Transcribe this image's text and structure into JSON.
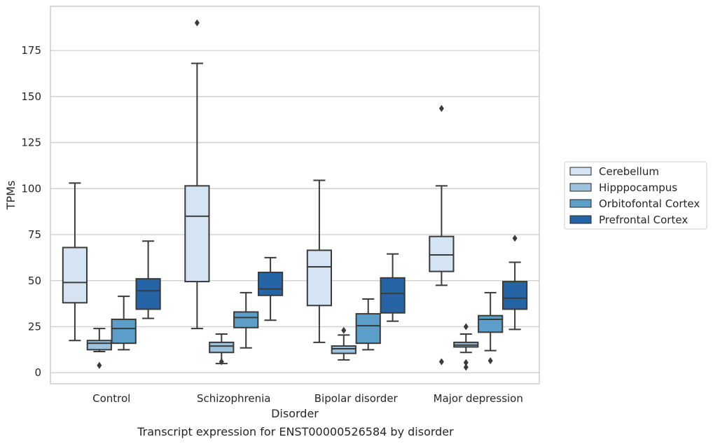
{
  "caption": "Transcript expression for ENST00000526584 by disorder",
  "chart_data": {
    "type": "box",
    "title": "",
    "xlabel": "Disorder",
    "ylabel": "TPMs",
    "ylim": [
      -6,
      199
    ],
    "yticks": [
      0,
      25,
      50,
      75,
      100,
      125,
      150,
      175
    ],
    "grid": "horizontal",
    "legend_position": "right",
    "categories": [
      "Control",
      "Schizophrenia",
      "Bipolar disorder",
      "Major depression"
    ],
    "series": [
      {
        "name": "Cerebellum",
        "color": "#d4e4f2",
        "boxes": [
          {
            "whislo": 17.5,
            "q1": 38,
            "med": 49,
            "q3": 68,
            "whishi": 103,
            "fliers": []
          },
          {
            "whislo": 24,
            "q1": 49.5,
            "med": 85,
            "q3": 101.5,
            "whishi": 168,
            "fliers": [
              190
            ]
          },
          {
            "whislo": 16.5,
            "q1": 36.5,
            "med": 57.5,
            "q3": 66.5,
            "whishi": 104.5,
            "fliers": []
          },
          {
            "whislo": 47.5,
            "q1": 55,
            "med": 64,
            "q3": 74,
            "whishi": 101.5,
            "fliers": [
              143.5,
              6
            ]
          }
        ]
      },
      {
        "name": "Hipppocampus",
        "color": "#9cc2dd",
        "boxes": [
          {
            "whislo": 11.5,
            "q1": 12.5,
            "med": 16,
            "q3": 17.5,
            "whishi": 24,
            "fliers": [
              4
            ]
          },
          {
            "whislo": 5,
            "q1": 11,
            "med": 14.5,
            "q3": 16.5,
            "whishi": 21,
            "fliers": [
              6
            ]
          },
          {
            "whislo": 7,
            "q1": 10.5,
            "med": 13,
            "q3": 14.5,
            "whishi": 20.5,
            "fliers": [
              23
            ]
          },
          {
            "whislo": 11,
            "q1": 14,
            "med": 15,
            "q3": 16.5,
            "whishi": 21,
            "fliers": [
              25,
              5.5,
              3
            ]
          }
        ]
      },
      {
        "name": "Orbitofontal Cortex",
        "color": "#5b9ec9",
        "boxes": [
          {
            "whislo": 12.5,
            "q1": 16,
            "med": 24,
            "q3": 29,
            "whishi": 41.5,
            "fliers": []
          },
          {
            "whislo": 13.5,
            "q1": 24.5,
            "med": 30,
            "q3": 33,
            "whishi": 43.5,
            "fliers": []
          },
          {
            "whislo": 12.5,
            "q1": 16,
            "med": 25.5,
            "q3": 32,
            "whishi": 40,
            "fliers": []
          },
          {
            "whislo": 12,
            "q1": 22,
            "med": 29,
            "q3": 31,
            "whishi": 43.5,
            "fliers": [
              6.5
            ]
          }
        ]
      },
      {
        "name": "Prefrontal Cortex",
        "color": "#2665a5",
        "boxes": [
          {
            "whislo": 29.5,
            "q1": 34.5,
            "med": 44.5,
            "q3": 51,
            "whishi": 71.5,
            "fliers": []
          },
          {
            "whislo": 28.5,
            "q1": 42,
            "med": 45.5,
            "q3": 54.5,
            "whishi": 62.5,
            "fliers": []
          },
          {
            "whislo": 28,
            "q1": 32.5,
            "med": 43,
            "q3": 51.5,
            "whishi": 64.5,
            "fliers": []
          },
          {
            "whislo": 23.5,
            "q1": 34.5,
            "med": 40.5,
            "q3": 49.5,
            "whishi": 60,
            "fliers": [
              73
            ]
          }
        ]
      }
    ]
  }
}
